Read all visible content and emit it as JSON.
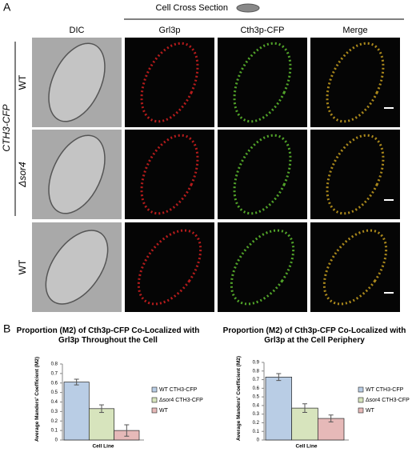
{
  "panel_a": {
    "label": "A",
    "header": "Cell Cross Section",
    "columns": [
      "DIC",
      "Grl3p",
      "Cth3p-CFP",
      "Merge"
    ],
    "rows": [
      "WT",
      "Δsor4",
      "WT"
    ],
    "group": "CTH3-CFP"
  },
  "panel_b": {
    "label": "B"
  },
  "chart_data": [
    {
      "type": "bar",
      "title": "Proportion (M2) of Cth3p-CFP Co-Localized with Grl3p Throughout the Cell",
      "ylabel": "Average Manders' Coefficient (M2)",
      "xlabel": "Cell Line",
      "ylim": [
        0,
        0.8
      ],
      "yticks": [
        0,
        0.1,
        0.2,
        0.3,
        0.4,
        0.5,
        0.6,
        0.7,
        0.8
      ],
      "series": [
        {
          "name": "WT CTH3-CFP",
          "color": "#b9cde5",
          "values": [
            0.61
          ],
          "errors": [
            0.03
          ]
        },
        {
          "name": "Δsor4 CTH3-CFP",
          "color": "#d7e4bd",
          "values": [
            0.33
          ],
          "errors": [
            0.04
          ]
        },
        {
          "name": "WT",
          "color": "#e6b9b8",
          "values": [
            0.1
          ],
          "errors": [
            0.06
          ]
        }
      ]
    },
    {
      "type": "bar",
      "title": "Proportion (M2) of Cth3p-CFP Co-Localized with Grl3p at the Cell Periphery",
      "ylabel": "Average Manders' Coefficient (M2)",
      "xlabel": "Cell Line",
      "ylim": [
        0,
        0.9
      ],
      "yticks": [
        0,
        0.1,
        0.2,
        0.3,
        0.4,
        0.5,
        0.6,
        0.7,
        0.8,
        0.9
      ],
      "series": [
        {
          "name": "WT CTH3-CFP",
          "color": "#b9cde5",
          "values": [
            0.73
          ],
          "errors": [
            0.04
          ]
        },
        {
          "name": "Δsor4 CTH3-CFP",
          "color": "#d7e4bd",
          "values": [
            0.37
          ],
          "errors": [
            0.05
          ]
        },
        {
          "name": "WT",
          "color": "#e6b9b8",
          "values": [
            0.25
          ],
          "errors": [
            0.04
          ]
        }
      ]
    }
  ]
}
